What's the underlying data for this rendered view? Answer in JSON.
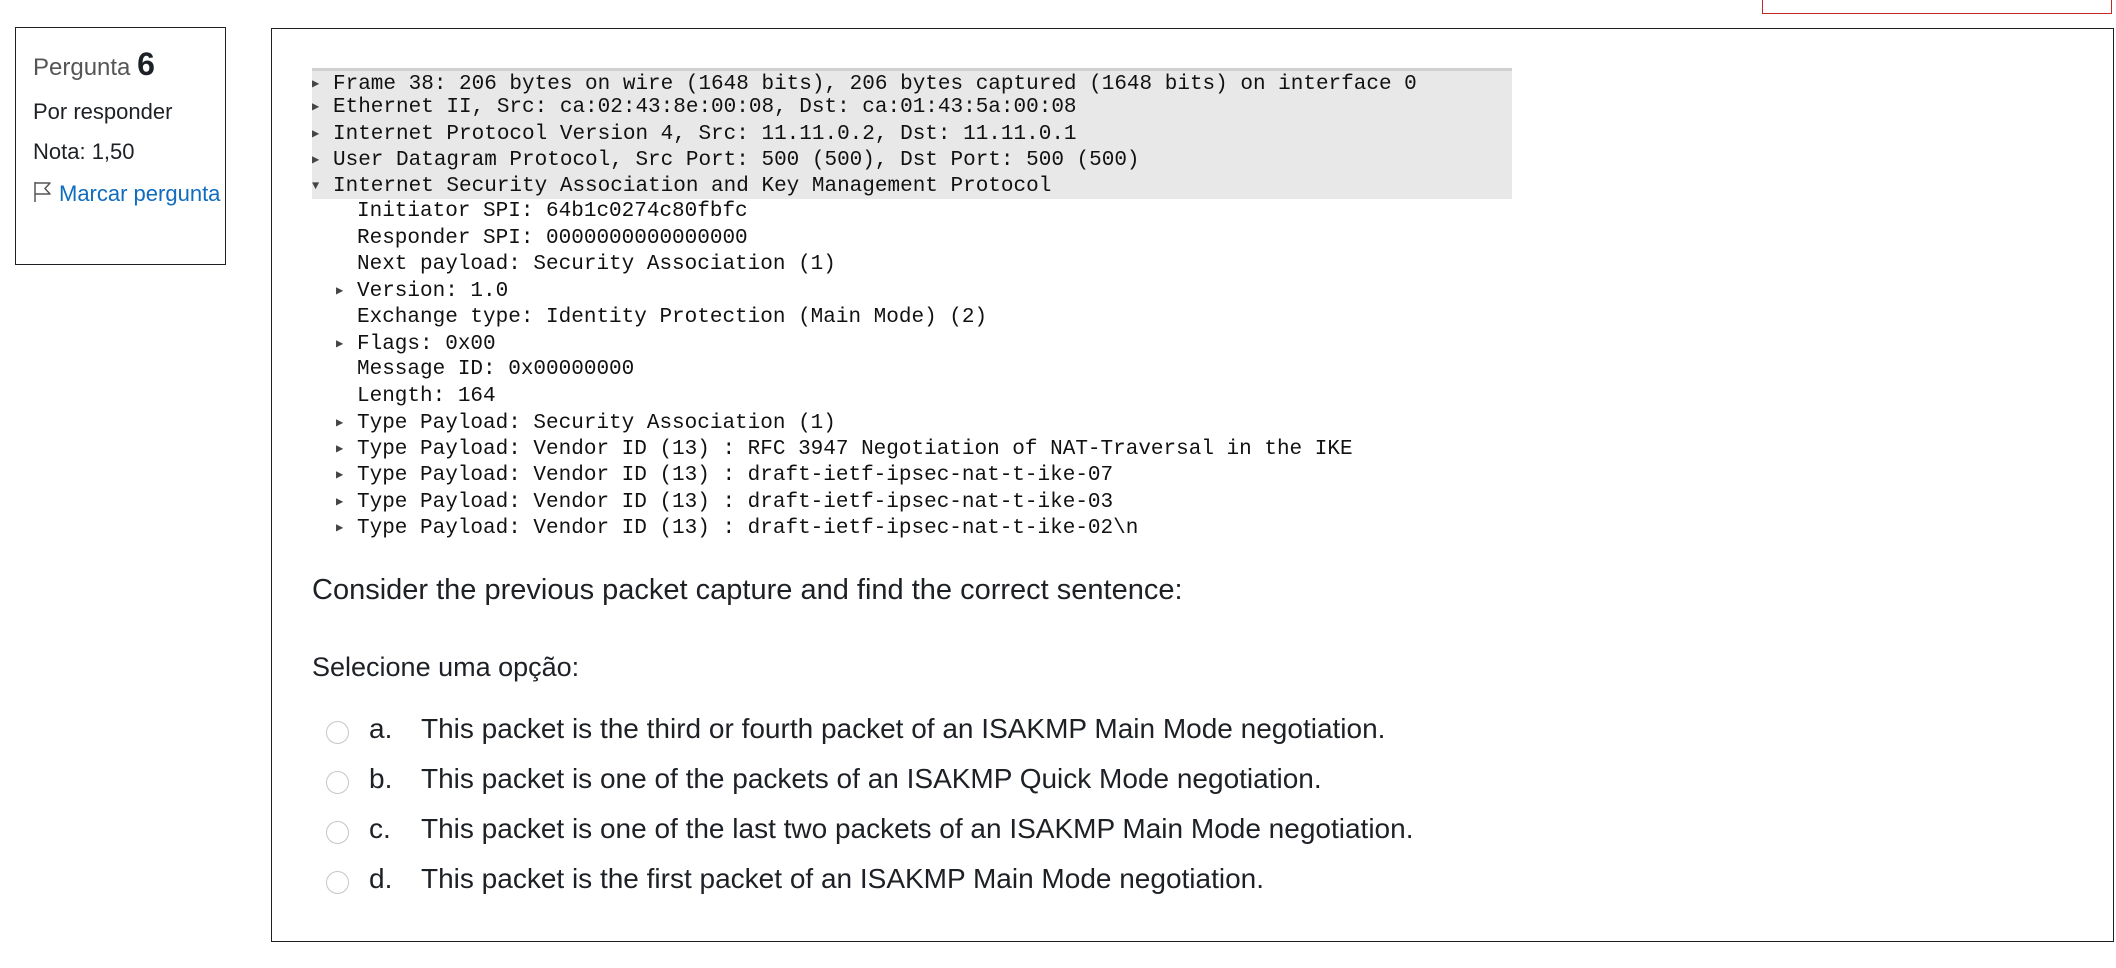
{
  "question_info": {
    "label": "Pergunta",
    "number": "6",
    "status": "Por responder",
    "grade": "Nota: 1,50",
    "flag_label": "Marcar pergunta",
    "flag_icon": "flag-outline-icon"
  },
  "packet_capture": [
    {
      "indent": 0,
      "toggle": "collapsed",
      "text": "Frame 38: 206 bytes on wire (1648 bits), 206 bytes captured (1648 bits) on interface 0"
    },
    {
      "indent": 0,
      "toggle": "collapsed",
      "text": "Ethernet II, Src: ca:02:43:8e:00:08, Dst: ca:01:43:5a:00:08"
    },
    {
      "indent": 0,
      "toggle": "collapsed",
      "text": "Internet Protocol Version 4, Src: 11.11.0.2, Dst: 11.11.0.1"
    },
    {
      "indent": 0,
      "toggle": "collapsed",
      "text": "User Datagram Protocol, Src Port: 500 (500), Dst Port: 500 (500)"
    },
    {
      "indent": 0,
      "toggle": "expanded",
      "text": "Internet Security Association and Key Management Protocol"
    },
    {
      "indent": 1,
      "toggle": "none",
      "text": "Initiator SPI: 64b1c0274c80fbfc"
    },
    {
      "indent": 1,
      "toggle": "none",
      "text": "Responder SPI: 0000000000000000"
    },
    {
      "indent": 1,
      "toggle": "none",
      "text": "Next payload: Security Association (1)"
    },
    {
      "indent": 1,
      "toggle": "collapsed",
      "text": "Version: 1.0"
    },
    {
      "indent": 1,
      "toggle": "none",
      "text": "Exchange type: Identity Protection (Main Mode) (2)"
    },
    {
      "indent": 1,
      "toggle": "collapsed",
      "text": "Flags: 0x00"
    },
    {
      "indent": 1,
      "toggle": "none",
      "text": "Message ID: 0x00000000"
    },
    {
      "indent": 1,
      "toggle": "none",
      "text": "Length: 164"
    },
    {
      "indent": 1,
      "toggle": "collapsed",
      "text": "Type Payload: Security Association (1)"
    },
    {
      "indent": 1,
      "toggle": "collapsed",
      "text": "Type Payload: Vendor ID (13) : RFC 3947 Negotiation of NAT-Traversal in the IKE"
    },
    {
      "indent": 1,
      "toggle": "collapsed",
      "text": "Type Payload: Vendor ID (13) : draft-ietf-ipsec-nat-t-ike-07"
    },
    {
      "indent": 1,
      "toggle": "collapsed",
      "text": "Type Payload: Vendor ID (13) : draft-ietf-ipsec-nat-t-ike-03"
    },
    {
      "indent": 1,
      "toggle": "collapsed",
      "text": "Type Payload: Vendor ID (13) : draft-ietf-ipsec-nat-t-ike-02\\n"
    }
  ],
  "question": {
    "prompt": "Consider the previous packet capture and find the correct sentence:",
    "select_label": "Selecione uma opção:",
    "options": [
      {
        "letter": "a.",
        "text": "This packet is the third or fourth packet of an ISAKMP Main Mode negotiation."
      },
      {
        "letter": "b.",
        "text": "This packet is one of the packets of an ISAKMP Quick Mode negotiation."
      },
      {
        "letter": "c.",
        "text": "This packet is one of the last two packets of an ISAKMP Main Mode negotiation."
      },
      {
        "letter": "d.",
        "text": "This packet is the first packet of an ISAKMP Main Mode negotiation."
      }
    ]
  },
  "colors": {
    "link": "#0f6cbf",
    "border": "#1d2125",
    "capture_highlight": "#e8e8e8",
    "top_box_border": "#c62828"
  }
}
